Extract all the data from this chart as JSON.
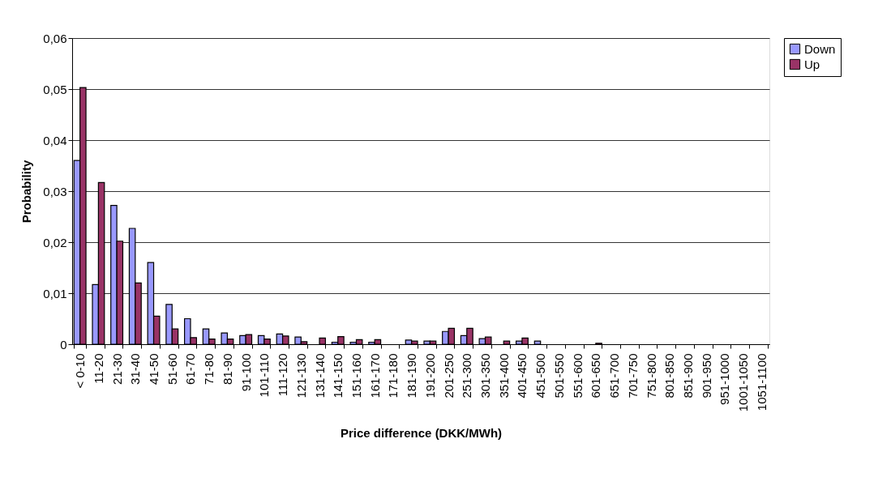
{
  "chart_data": {
    "type": "bar",
    "xlabel": "Price difference (DKK/MWh)",
    "ylabel": "Probability",
    "categories": [
      "< 0-10",
      "11-20",
      "21-30",
      "31-40",
      "41-50",
      "51-60",
      "61-70",
      "71-80",
      "81-90",
      "91-100",
      "101-110",
      "111-120",
      "121-130",
      "131-140",
      "141-150",
      "151-160",
      "161-170",
      "171-180",
      "181-190",
      "191-200",
      "201-250",
      "251-300",
      "301-350",
      "351-400",
      "401-450",
      "451-500",
      "501-550",
      "551-600",
      "601-650",
      "651-700",
      "701-750",
      "751-800",
      "801-850",
      "851-900",
      "901-950",
      "951-1000",
      "1001-1050",
      "1051-1100"
    ],
    "series": [
      {
        "name": "Down",
        "color": "#9999ff",
        "values": [
          0.036,
          0.0117,
          0.0272,
          0.0227,
          0.016,
          0.0078,
          0.005,
          0.003,
          0.0022,
          0.0017,
          0.0017,
          0.002,
          0.0014,
          0,
          0.0004,
          0.0004,
          0.0004,
          0,
          0.0008,
          0.0006,
          0.0025,
          0.0017,
          0.0011,
          0,
          0.0006,
          0.0006,
          0,
          0,
          0,
          0,
          0,
          0,
          0,
          0,
          0,
          0,
          0,
          0
        ]
      },
      {
        "name": "Up",
        "color": "#993366",
        "values": [
          0.0503,
          0.0317,
          0.0202,
          0.012,
          0.0055,
          0.003,
          0.0013,
          0.001,
          0.001,
          0.0019,
          0.001,
          0.0016,
          0.0005,
          0.0012,
          0.0015,
          0.0009,
          0.0009,
          0,
          0.0006,
          0.0006,
          0.0031,
          0.0031,
          0.0014,
          0.0006,
          0.0012,
          0,
          0,
          0,
          0.0002,
          0,
          0,
          0,
          0,
          0,
          0,
          0,
          0,
          0
        ]
      }
    ],
    "ylim": [
      0,
      0.06
    ],
    "yticks": [
      {
        "value": 0,
        "label": "0"
      },
      {
        "value": 0.01,
        "label": "0,01"
      },
      {
        "value": 0.02,
        "label": "0,02"
      },
      {
        "value": 0.03,
        "label": "0,03"
      },
      {
        "value": 0.04,
        "label": "0,04"
      },
      {
        "value": 0.05,
        "label": "0,05"
      },
      {
        "value": 0.06,
        "label": "0,06"
      }
    ],
    "grid": "y",
    "legend": "right"
  }
}
